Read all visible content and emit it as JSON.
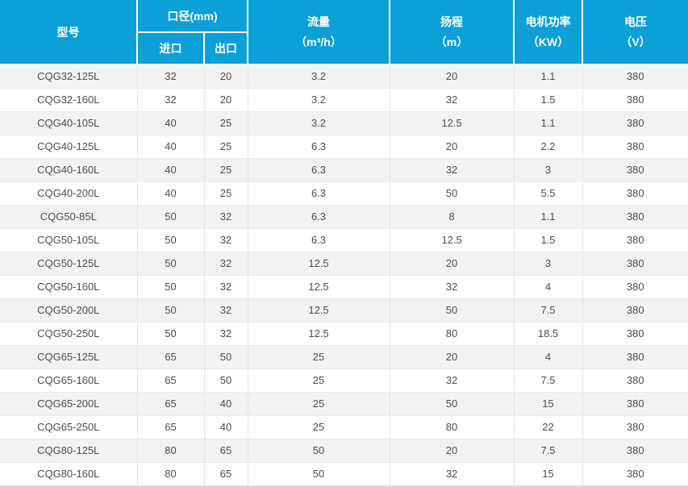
{
  "table": {
    "header": {
      "model": "型号",
      "diameter_group": "口径(mm)",
      "inlet": "进口",
      "outlet": "出口",
      "flow_line1": "流量",
      "flow_line2": "（m³/h）",
      "head_line1": "扬程",
      "head_line2": "（m）",
      "power_line1": "电机功率",
      "power_line2": "（KW）",
      "voltage_line1": "电压",
      "voltage_line2": "（V）"
    },
    "col_keys": [
      "model",
      "inlet",
      "outlet",
      "flow",
      "head",
      "power",
      "voltage"
    ],
    "rows": [
      [
        "CQG32-125L",
        "32",
        "20",
        "3.2",
        "20",
        "1.1",
        "380"
      ],
      [
        "CQG32-160L",
        "32",
        "20",
        "3.2",
        "32",
        "1.5",
        "380"
      ],
      [
        "CQG40-105L",
        "40",
        "25",
        "3.2",
        "12.5",
        "1.1",
        "380"
      ],
      [
        "CQG40-125L",
        "40",
        "25",
        "6.3",
        "20",
        "2.2",
        "380"
      ],
      [
        "CQG40-160L",
        "40",
        "25",
        "6.3",
        "32",
        "3",
        "380"
      ],
      [
        "CQG40-200L",
        "40",
        "25",
        "6.3",
        "50",
        "5.5",
        "380"
      ],
      [
        "CQG50-85L",
        "50",
        "32",
        "6.3",
        "8",
        "1.1",
        "380"
      ],
      [
        "CQG50-105L",
        "50",
        "32",
        "6.3",
        "12.5",
        "1.5",
        "380"
      ],
      [
        "CQG50-125L",
        "50",
        "32",
        "12.5",
        "20",
        "3",
        "380"
      ],
      [
        "CQG50-160L",
        "50",
        "32",
        "12.5",
        "32",
        "4",
        "380"
      ],
      [
        "CQG50-200L",
        "50",
        "32",
        "12.5",
        "50",
        "7.5",
        "380"
      ],
      [
        "CQG50-250L",
        "50",
        "32",
        "12.5",
        "80",
        "18.5",
        "380"
      ],
      [
        "CQG65-125L",
        "65",
        "50",
        "25",
        "20",
        "4",
        "380"
      ],
      [
        "CQG65-160L",
        "65",
        "50",
        "25",
        "32",
        "7.5",
        "380"
      ],
      [
        "CQG65-200L",
        "65",
        "40",
        "25",
        "50",
        "15",
        "380"
      ],
      [
        "CQG65-250L",
        "65",
        "40",
        "25",
        "80",
        "22",
        "380"
      ],
      [
        "CQG80-125L",
        "80",
        "65",
        "50",
        "20",
        "7.5",
        "380"
      ],
      [
        "CQG80-160L",
        "80",
        "65",
        "50",
        "32",
        "15",
        "380"
      ]
    ],
    "stripe_pattern": "odd-rows-gray"
  },
  "colors": {
    "header_bg": "#0ba0d8",
    "header_text": "#ffffff",
    "stripe_bg": "#f2f2f2",
    "row_bg": "#ffffff",
    "body_text": "#4d4d4d",
    "grid_line": "#e4e4e4"
  }
}
